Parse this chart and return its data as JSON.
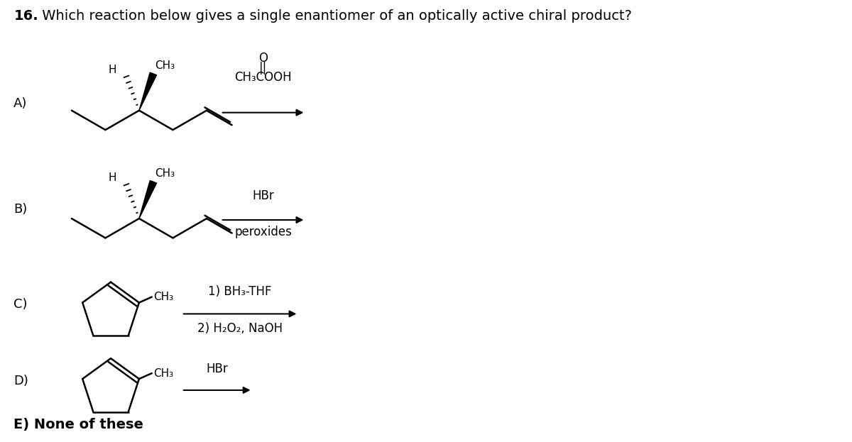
{
  "bg_color": "#ffffff",
  "text_color": "#000000",
  "title_num": "16.",
  "title_rest": " Which reaction below gives a single enantiomer of an optically active chiral product?",
  "A_label": "A)",
  "B_label": "B)",
  "C_label": "C)",
  "D_label": "D)",
  "E_label": "E) None of these",
  "A_reagent_above": "O",
  "A_reagent_middle": "||",
  "A_reagent_below": "CH₃COOH",
  "B_reagent_top": "HBr",
  "B_reagent_bot": "peroxides",
  "C_reagent_top": "1) BH₃-THF",
  "C_reagent_bot": "2) H₂O₂, NaOH",
  "D_reagent": "HBr"
}
